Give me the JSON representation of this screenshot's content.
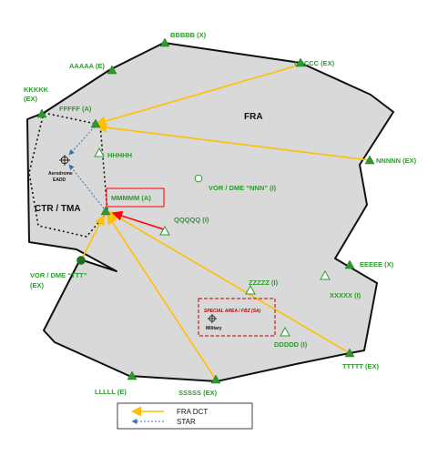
{
  "regions": {
    "fra": "FRA",
    "ctr_tma": "CTR / TMA"
  },
  "points": {
    "aaaaa": "AAAAA (E)",
    "bbbbb": "BBBBB (X)",
    "ccccc": "CCCCC (EX)",
    "kkkkk_line1": "KKKKK",
    "kkkkk_line2": "(EX)",
    "fffff": "FFFFF (A)",
    "hhhhh": "HHHHH",
    "mmmmm": "MMMMM (A)",
    "qqqqq": "QQQQQ (I)",
    "nnnnn": "NNNNN (EX)",
    "vor_nnn": "VOR / DME “NNN” (I)",
    "eeeee": "EEEEE (X)",
    "xxxxx": "XXXXX (I)",
    "zzzzz": "ZZZZZ (I)",
    "ddddd": "DDDDD (I)",
    "ttttt": "TTTTT (EX)",
    "sssss": "SSSSS (EX)",
    "lllll": "LLLLL (E)",
    "vor_ttt_line1": "VOR / DME “TTT”",
    "vor_ttt_line2": "(EX)",
    "aerodrome_line1": "Aerodrome",
    "aerodrome_line2": "EADD",
    "special_area": "SPECIAL AREA / FBZ (SA)",
    "military": "Military"
  },
  "legend": {
    "fra_dct": "FRA DCT",
    "star": "STAR"
  },
  "colors": {
    "area_fill": "#d9d9d9",
    "route": "#ffc000",
    "star": "#2e75b6",
    "marker": "#2e9a2e",
    "highlight": "#ff0000",
    "special": "#c00000"
  }
}
